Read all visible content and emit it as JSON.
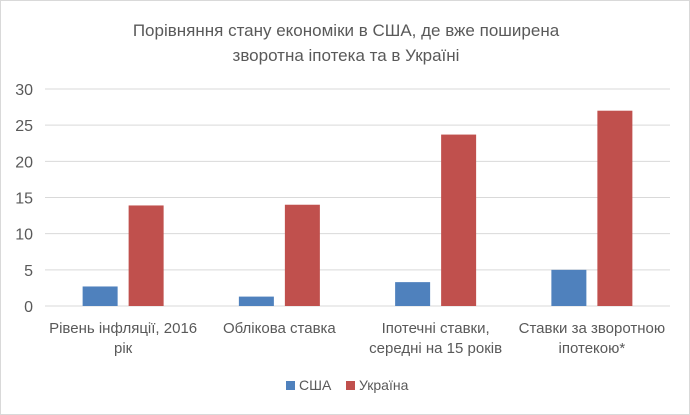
{
  "chart_data": {
    "type": "bar",
    "title": [
      "Порівняння стану економіки в США, де вже поширена",
      "зворотна іпотека та в Україні"
    ],
    "categories": [
      [
        "Рівень інфляції, 2016",
        "рік"
      ],
      [
        "Облікова ставка"
      ],
      [
        "Іпотечні ставки,",
        "середні на 15 років"
      ],
      [
        "Ставки за зворотною",
        "іпотекою*"
      ]
    ],
    "series": [
      {
        "name": "США",
        "color": "#4f81bd",
        "values": [
          2.7,
          1.3,
          3.3,
          5.0
        ]
      },
      {
        "name": "Україна",
        "color": "#c0504d",
        "values": [
          13.9,
          14.0,
          23.7,
          27.0
        ]
      }
    ],
    "xlabel": "",
    "ylabel": "",
    "ylim": [
      0,
      30
    ],
    "yticks": [
      0,
      5,
      10,
      15,
      20,
      25,
      30
    ],
    "grid": true,
    "legend": "bottom"
  }
}
